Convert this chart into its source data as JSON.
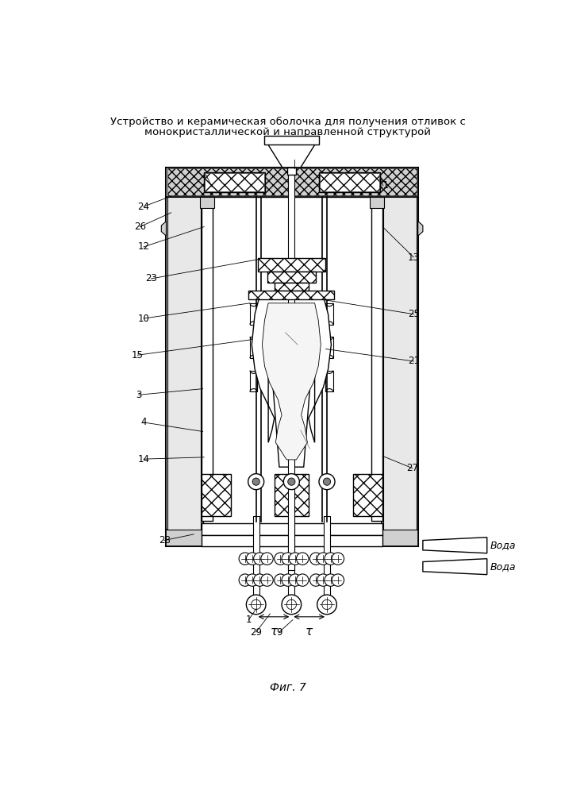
{
  "title_line1": "Устройство и керамическая оболочка для получения отливок с",
  "title_line2": "монокристаллической и направленной структурой",
  "fig_caption": "Фиг. 7",
  "water_label": "Вода",
  "tau_label": "τ",
  "bg_color": "#ffffff",
  "line_color": "#000000",
  "dot_fill": "#d4d4d4",
  "cross_hatch_fill": "#b8b8b8"
}
